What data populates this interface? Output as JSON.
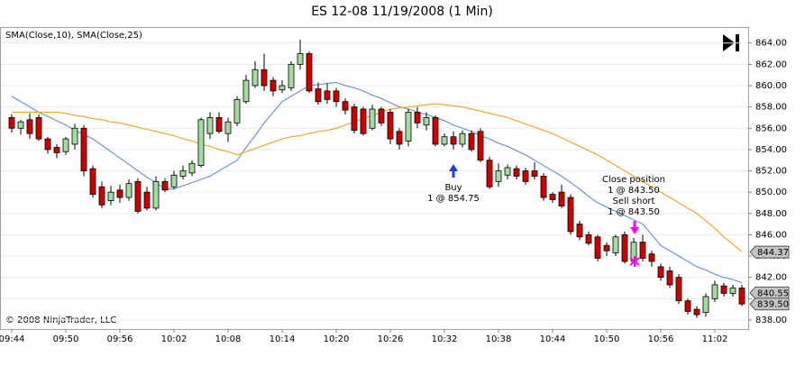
{
  "chart_data": {
    "type": "candlestick",
    "title": "ES 12-08  11/19/2008 (1 Min)",
    "legend_label": "SMA(Close,10), SMA(Close,25)",
    "copyright": "© 2008 NinjaTrader, LLC",
    "categories": [
      "09:44",
      null,
      null,
      null,
      null,
      null,
      "09:50",
      null,
      null,
      null,
      null,
      null,
      "09:56",
      null,
      null,
      null,
      null,
      null,
      "10:02",
      null,
      null,
      null,
      null,
      null,
      "10:08",
      null,
      null,
      null,
      null,
      null,
      "10:14",
      null,
      null,
      null,
      null,
      null,
      "10:20",
      null,
      null,
      null,
      null,
      null,
      "10:26",
      null,
      null,
      null,
      null,
      null,
      "10:32",
      null,
      null,
      null,
      null,
      null,
      "10:38",
      null,
      null,
      null,
      null,
      null,
      "10:44",
      null,
      null,
      null,
      null,
      null,
      "10:50",
      null,
      null,
      null,
      null,
      null,
      "10:56",
      null,
      null,
      null,
      null,
      null,
      "11:02",
      null,
      null,
      null
    ],
    "open": [
      857.0,
      856.0,
      856.8,
      857.0,
      855.0,
      854.2,
      853.8,
      854.5,
      856.0,
      852.2,
      850.5,
      849.2,
      850.2,
      849.5,
      851.0,
      850.0,
      848.5,
      851.0,
      850.5,
      851.5,
      851.8,
      852.5,
      855.5,
      857.0,
      855.5,
      856.5,
      858.5,
      860.0,
      861.5,
      860.5,
      859.6,
      859.8,
      862.0,
      863.0,
      859.7,
      859.5,
      859.5,
      858.5,
      858.0,
      857.8,
      856.0,
      857.8,
      857.5,
      855.7,
      854.8,
      857.5,
      856.3,
      857.0,
      854.5,
      855.2,
      854.5,
      855.5,
      855.7,
      853.0,
      851.0,
      851.6,
      852.2,
      852.0,
      852.0,
      851.5,
      849.8,
      850.0,
      849.5,
      847.0,
      846.0,
      845.8,
      845.0,
      844.3,
      846.0,
      843.5,
      845.3,
      844.2,
      843.0,
      842.6,
      842.0,
      839.8,
      839.0,
      838.7,
      840.0,
      841.2,
      840.5,
      841.0
    ],
    "high": [
      857.3,
      856.8,
      857.4,
      857.3,
      855.2,
      854.5,
      855.2,
      856.4,
      856.3,
      852.5,
      851.0,
      850.6,
      850.7,
      851.2,
      851.3,
      850.5,
      851.5,
      851.3,
      852.0,
      852.5,
      853.0,
      857.0,
      857.5,
      857.5,
      857.0,
      859.0,
      861.0,
      862.3,
      863.0,
      860.8,
      860.5,
      862.3,
      864.3,
      863.2,
      860.3,
      860.2,
      859.8,
      858.8,
      858.3,
      858.0,
      858.2,
      858.0,
      857.8,
      856.0,
      857.8,
      858.0,
      857.5,
      857.2,
      855.5,
      855.7,
      855.8,
      855.8,
      856.0,
      853.3,
      852.7,
      852.6,
      852.5,
      852.3,
      852.8,
      851.8,
      850.0,
      850.7,
      849.8,
      847.3,
      846.3,
      846.0,
      845.3,
      846.0,
      846.3,
      845.7,
      846.0,
      844.5,
      843.3,
      843.0,
      842.3,
      840.0,
      839.3,
      840.5,
      841.7,
      841.5,
      841.3,
      841.3
    ],
    "low": [
      855.6,
      855.4,
      855.0,
      854.8,
      853.6,
      853.2,
      853.5,
      854.0,
      851.5,
      849.5,
      848.5,
      848.8,
      849.0,
      849.2,
      848.0,
      848.3,
      848.3,
      850.0,
      850.3,
      851.2,
      851.5,
      852.3,
      855.0,
      855.5,
      854.7,
      856.2,
      858.3,
      859.8,
      859.5,
      859.0,
      859.3,
      859.5,
      861.5,
      859.3,
      858.2,
      858.3,
      858.0,
      857.3,
      855.5,
      855.3,
      855.8,
      856.2,
      854.5,
      854.0,
      854.3,
      856.0,
      855.8,
      854.3,
      854.3,
      854.0,
      854.2,
      853.8,
      852.8,
      850.3,
      850.5,
      851.2,
      851.2,
      850.7,
      851.2,
      849.2,
      849.0,
      848.5,
      846.0,
      845.5,
      845.0,
      843.5,
      844.0,
      844.0,
      843.3,
      843.3,
      843.5,
      843.0,
      841.7,
      841.0,
      839.5,
      838.5,
      838.2,
      838.3,
      839.7,
      840.2,
      840.2,
      839.3
    ],
    "close": [
      856.0,
      856.6,
      855.5,
      855.0,
      854.0,
      853.7,
      855.0,
      856.0,
      852.0,
      849.8,
      848.8,
      850.0,
      849.5,
      850.8,
      848.2,
      848.5,
      851.0,
      850.2,
      851.6,
      852.0,
      852.7,
      856.8,
      857.0,
      855.7,
      856.6,
      858.7,
      860.5,
      861.5,
      860.0,
      859.5,
      860.0,
      862.0,
      863.0,
      859.5,
      858.5,
      858.7,
      858.5,
      857.7,
      855.8,
      855.5,
      857.8,
      856.5,
      855.0,
      854.5,
      857.5,
      856.5,
      857.0,
      854.5,
      855.2,
      854.5,
      855.5,
      854.0,
      853.0,
      850.5,
      852.0,
      852.3,
      851.5,
      851.0,
      851.5,
      849.5,
      849.3,
      848.7,
      846.3,
      845.8,
      845.2,
      843.8,
      844.5,
      845.8,
      843.5,
      845.3,
      843.8,
      843.5,
      842.0,
      841.3,
      839.8,
      838.8,
      838.5,
      840.2,
      841.3,
      840.5,
      841.0,
      839.5
    ],
    "up_color": "#a4dca0",
    "down_color": "#cc0000",
    "series": [
      {
        "color": "#6f95d8",
        "values": [
          859.0,
          858.5,
          858.0,
          857.5,
          857.1,
          856.7,
          856.3,
          855.8,
          855.4,
          855.0,
          854.4,
          853.8,
          853.2,
          852.6,
          852.0,
          851.4,
          850.9,
          850.3,
          850.3,
          850.6,
          850.9,
          851.2,
          851.5,
          852.0,
          852.5,
          853.0,
          854.2,
          855.3,
          856.5,
          857.5,
          858.5,
          859.0,
          859.5,
          860.0,
          860.1,
          860.2,
          860.3,
          860.0,
          859.8,
          859.5,
          859.1,
          858.8,
          858.4,
          858.0,
          857.8,
          857.5,
          857.3,
          857.0,
          856.7,
          856.3,
          856.0,
          855.7,
          855.3,
          855.0,
          854.6,
          854.3,
          853.9,
          853.5,
          853.0,
          852.5,
          852.0,
          851.5,
          850.9,
          850.3,
          849.6,
          849.0,
          848.6,
          848.2,
          847.8,
          847.4,
          847.0,
          846.0,
          845.0,
          844.5,
          844.0,
          843.5,
          843.0,
          842.7,
          842.3,
          842.0,
          841.8,
          841.5
        ]
      },
      {
        "color": "#f0a830",
        "values": [
          857.5,
          857.5,
          857.5,
          857.5,
          857.5,
          857.5,
          857.4,
          857.2,
          857.1,
          856.9,
          856.8,
          856.6,
          856.5,
          856.3,
          856.1,
          855.9,
          855.7,
          855.5,
          855.3,
          855.0,
          854.8,
          854.5,
          854.3,
          854.0,
          853.8,
          853.5,
          853.8,
          854.1,
          854.4,
          854.7,
          855.0,
          855.2,
          855.3,
          855.5,
          855.7,
          855.8,
          856.0,
          856.3,
          856.6,
          856.9,
          857.2,
          857.5,
          857.8,
          857.9,
          858.0,
          858.1,
          858.2,
          858.3,
          858.2,
          858.1,
          858.0,
          857.8,
          857.6,
          857.4,
          857.2,
          857.0,
          856.7,
          856.4,
          856.1,
          855.8,
          855.5,
          855.1,
          854.7,
          854.3,
          853.9,
          853.5,
          853.0,
          852.5,
          852.0,
          851.5,
          851.0,
          850.5,
          850.0,
          849.5,
          849.0,
          848.5,
          848.0,
          847.3,
          846.6,
          845.8,
          845.1,
          844.4
        ]
      }
    ],
    "price_markers": [
      844.37,
      840.55,
      {
        "value": 839.5,
        "label": "839.50"
      }
    ],
    "annotations": [
      {
        "lines": [
          "Buy",
          "1 @ 854.75"
        ]
      },
      {
        "lines": [
          "Close position",
          "1 @ 843.50",
          "Sell short",
          "1 @ 843.50"
        ]
      }
    ],
    "ylim": [
      837.15,
      865.5
    ],
    "yticks": [
      {
        "value": 838,
        "label": "838.00"
      },
      {
        "value": 840,
        "label": "840.00"
      },
      {
        "value": 842,
        "label": "842.00"
      },
      {
        "value": 844,
        "label": "844.00"
      },
      {
        "value": 846,
        "label": "846.00"
      },
      {
        "value": 848,
        "label": "848.00"
      },
      {
        "value": 850,
        "label": "850.00"
      },
      {
        "value": 852,
        "label": "852.00"
      },
      {
        "value": 854,
        "label": "854.00"
      },
      {
        "value": 856,
        "label": "856.00"
      },
      {
        "value": 858,
        "label": "858.00"
      },
      {
        "value": 860,
        "label": "860.00"
      },
      {
        "value": 862,
        "label": "862.00"
      },
      {
        "value": 864,
        "label": "864.00"
      }
    ],
    "grid": true
  }
}
